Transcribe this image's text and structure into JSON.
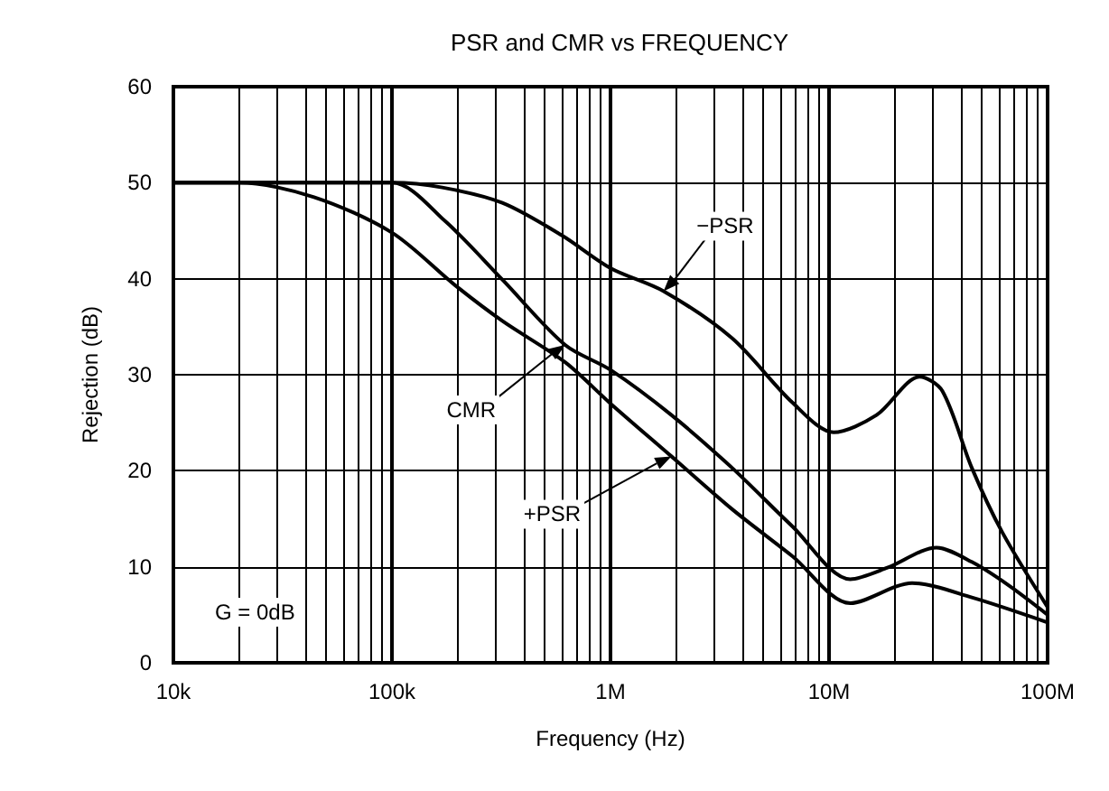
{
  "chart_data": {
    "type": "line",
    "title": "PSR and CMR vs FREQUENCY",
    "xlabel": "Frequency (Hz)",
    "ylabel": "Rejection (dB)",
    "log": "x",
    "grid": true,
    "marker": "none",
    "line_style": "solid",
    "xlim": [
      10000,
      100000000
    ],
    "xticks": [
      {
        "value": 10000,
        "label": "10k"
      },
      {
        "value": 100000,
        "label": "100k"
      },
      {
        "value": 1000000,
        "label": "1M"
      },
      {
        "value": 10000000,
        "label": "10M"
      },
      {
        "value": 100000000,
        "label": "100M"
      }
    ],
    "ylim": [
      0,
      60
    ],
    "yticks": [
      0,
      10,
      20,
      30,
      40,
      50,
      60
    ],
    "series": [
      {
        "color": "#000000",
        "x": [
          10000,
          30000,
          100000,
          170000,
          320000,
          600000,
          1000000,
          1750000,
          3600000,
          6800000,
          10500000,
          16500000,
          26000000,
          33000000,
          45000000,
          62000000,
          100000000
        ],
        "values": [
          50,
          50,
          50,
          49.5,
          47.9,
          44.5,
          41.1,
          38.7,
          33.8,
          27.1,
          24.0,
          25.8,
          29.8,
          28.3,
          20.3,
          13.6,
          5.8
        ]
      },
      {
        "color": "#000000",
        "x": [
          10000,
          100000,
          175000,
          320000,
          620000,
          1000000,
          1900000,
          3600000,
          6800000,
          12500000,
          18500000,
          31000000,
          45000000,
          66000000,
          100000000
        ],
        "values": [
          50,
          50,
          46,
          39.9,
          33.1,
          30.5,
          25.8,
          20.3,
          14.2,
          8.7,
          9.9,
          12.0,
          10.5,
          8.1,
          5
        ]
      },
      {
        "color": "#000000",
        "x": [
          10000,
          20000,
          44000,
          100000,
          195000,
          320000,
          620000,
          1000000,
          1900000,
          3600000,
          6800000,
          12500000,
          24000000,
          45000000,
          100000000
        ],
        "values": [
          50,
          50,
          48.5,
          44.8,
          39.3,
          35.6,
          31.3,
          27,
          21.5,
          16.0,
          11.1,
          6.2,
          8.3,
          6.8,
          4.2
        ]
      }
    ],
    "annotations": [
      {
        "text": "−PSR",
        "x": 1750000,
        "y": 38.7
      },
      {
        "text": "CMR",
        "x": 620000,
        "y": 33.1
      },
      {
        "text": "+PSR",
        "x": 1900000,
        "y": 21.5
      },
      "G = 0dB"
    ]
  }
}
